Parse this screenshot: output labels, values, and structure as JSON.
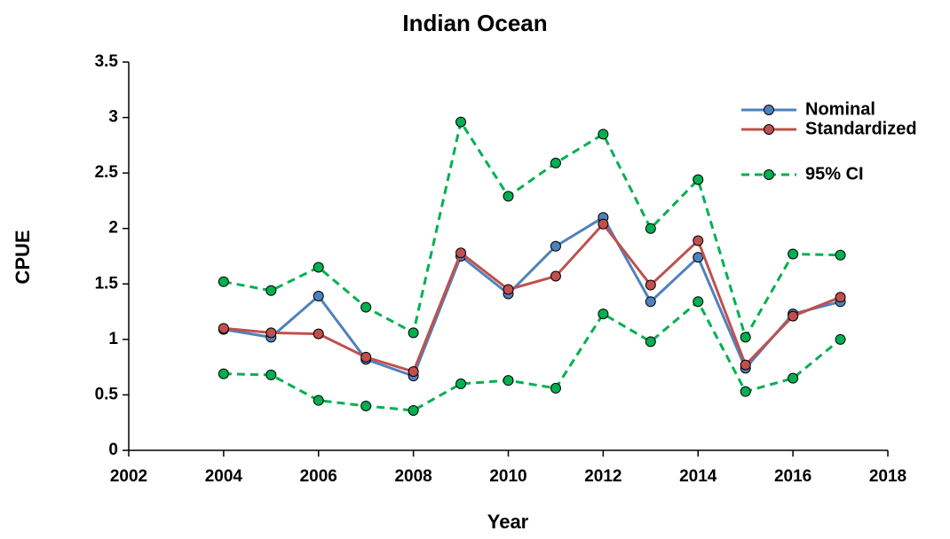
{
  "chart_data": {
    "type": "line",
    "title": "Indian Ocean",
    "x_label": "Year",
    "y_label": "CPUE",
    "x": [
      2004,
      2005,
      2006,
      2007,
      2008,
      2009,
      2010,
      2011,
      2012,
      2013,
      2014,
      2015,
      2016,
      2017
    ],
    "series": [
      {
        "name": "Nominal",
        "color": "#4f81bd",
        "values": [
          1.09,
          1.02,
          1.39,
          0.82,
          0.67,
          1.75,
          1.41,
          1.84,
          2.1,
          1.34,
          1.74,
          0.74,
          1.23,
          1.34
        ]
      },
      {
        "name": "Standardized",
        "color": "#c0504d",
        "values": [
          1.1,
          1.06,
          1.05,
          0.84,
          0.71,
          1.78,
          1.45,
          1.57,
          2.04,
          1.49,
          1.89,
          0.77,
          1.21,
          1.38
        ]
      },
      {
        "name": "95% CI",
        "color": "#00b050",
        "dashed": true,
        "upper": [
          1.52,
          1.44,
          1.65,
          1.29,
          1.06,
          2.96,
          2.29,
          2.59,
          2.85,
          2.0,
          2.44,
          1.02,
          1.77,
          1.76
        ],
        "lower": [
          0.69,
          0.68,
          0.45,
          0.4,
          0.36,
          0.6,
          0.63,
          0.56,
          1.23,
          0.98,
          1.34,
          0.53,
          0.65,
          1.0
        ]
      }
    ],
    "xlim": [
      2002,
      2018
    ],
    "xticks": [
      2002,
      2004,
      2006,
      2008,
      2010,
      2012,
      2014,
      2016,
      2018
    ],
    "ylim": [
      0,
      3.5
    ],
    "yticks": [
      0,
      0.5,
      1,
      1.5,
      2,
      2.5,
      3,
      3.5
    ],
    "legend": "upper right"
  }
}
